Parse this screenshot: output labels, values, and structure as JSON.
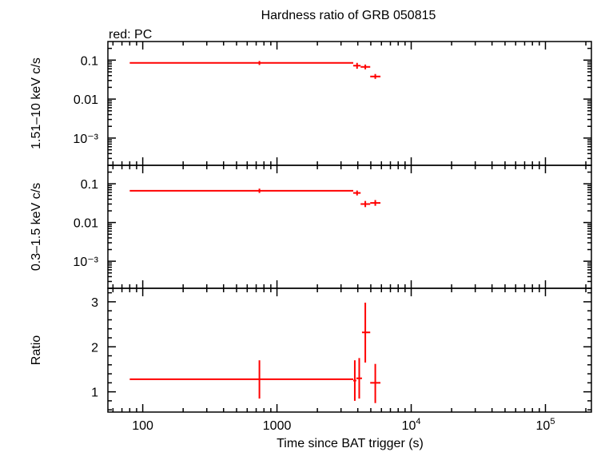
{
  "title": "Hardness ratio of GRB 050815",
  "subtitle": "red: PC",
  "xlabel": "Time since BAT trigger (s)",
  "colors": {
    "series": "#ff0000",
    "axis": "#000000"
  },
  "chart_data": [
    {
      "type": "scatter",
      "panel": "hard",
      "ylabel": "1.51–10 keV c/s",
      "yscale": "log",
      "ylim": [
        0.0002,
        0.3
      ],
      "yticks": [
        {
          "v": 0.1,
          "label": "0.1"
        },
        {
          "v": 0.01,
          "label": "0.01"
        },
        {
          "v": 0.001,
          "label": "10⁻³"
        }
      ],
      "series": [
        {
          "color": "#ff0000",
          "points": [
            {
              "x": 740,
              "y": 0.085,
              "xlo": 80,
              "xhi": 3700,
              "ylo": 0.075,
              "yhi": 0.095
            },
            {
              "x": 3950,
              "y": 0.072,
              "xlo": 3700,
              "xhi": 4200,
              "ylo": 0.06,
              "yhi": 0.085
            },
            {
              "x": 4550,
              "y": 0.067,
              "xlo": 4200,
              "xhi": 4950,
              "ylo": 0.058,
              "yhi": 0.077
            },
            {
              "x": 5400,
              "y": 0.038,
              "xlo": 4950,
              "xhi": 5900,
              "ylo": 0.033,
              "yhi": 0.044
            }
          ]
        }
      ]
    },
    {
      "type": "scatter",
      "panel": "soft",
      "ylabel": "0.3–1.5 keV c/s",
      "yscale": "log",
      "ylim": [
        0.0002,
        0.3
      ],
      "yticks": [
        {
          "v": 0.1,
          "label": "0.1"
        },
        {
          "v": 0.01,
          "label": "0.01"
        },
        {
          "v": 0.001,
          "label": "10⁻³"
        }
      ],
      "series": [
        {
          "color": "#ff0000",
          "points": [
            {
              "x": 740,
              "y": 0.066,
              "xlo": 80,
              "xhi": 3700,
              "ylo": 0.058,
              "yhi": 0.075
            },
            {
              "x": 3950,
              "y": 0.058,
              "xlo": 3700,
              "xhi": 4200,
              "ylo": 0.05,
              "yhi": 0.067
            },
            {
              "x": 4550,
              "y": 0.03,
              "xlo": 4200,
              "xhi": 4950,
              "ylo": 0.025,
              "yhi": 0.036
            },
            {
              "x": 5400,
              "y": 0.032,
              "xlo": 4950,
              "xhi": 5900,
              "ylo": 0.027,
              "yhi": 0.038
            }
          ]
        }
      ]
    },
    {
      "type": "scatter",
      "panel": "ratio",
      "ylabel": "Ratio",
      "yscale": "linear",
      "ylim": [
        0.55,
        3.3
      ],
      "yticks": [
        {
          "v": 1,
          "label": "1"
        },
        {
          "v": 2,
          "label": "2"
        },
        {
          "v": 3,
          "label": "3"
        }
      ],
      "series": [
        {
          "color": "#ff0000",
          "points": [
            {
              "x": 740,
              "y": 1.28,
              "xlo": 80,
              "xhi": 3700,
              "ylo": 0.85,
              "yhi": 1.7
            },
            {
              "x": 3800,
              "y": 1.25,
              "xlo": 3700,
              "xhi": 3900,
              "ylo": 0.8,
              "yhi": 1.7
            },
            {
              "x": 4100,
              "y": 1.3,
              "xlo": 3900,
              "xhi": 4300,
              "ylo": 0.85,
              "yhi": 1.75
            },
            {
              "x": 4550,
              "y": 2.32,
              "xlo": 4300,
              "xhi": 4950,
              "ylo": 1.65,
              "yhi": 2.98
            },
            {
              "x": 5400,
              "y": 1.2,
              "xlo": 4950,
              "xhi": 5900,
              "ylo": 0.75,
              "yhi": 1.62
            }
          ]
        }
      ]
    }
  ],
  "xaxis": {
    "scale": "log",
    "xlim": [
      55,
      220000
    ],
    "ticks": [
      {
        "v": 100,
        "label": "100",
        "sup": ""
      },
      {
        "v": 1000,
        "label": "1000",
        "sup": ""
      },
      {
        "v": 10000,
        "label": "10",
        "sup": "4"
      },
      {
        "v": 100000,
        "label": "10",
        "sup": "5"
      }
    ]
  }
}
